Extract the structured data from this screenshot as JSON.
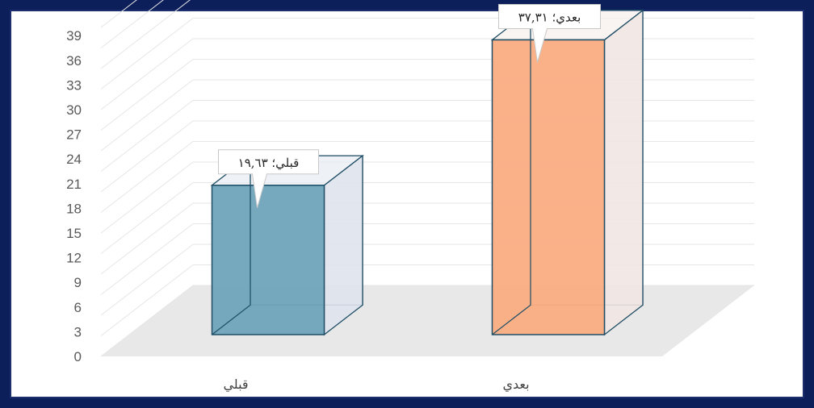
{
  "chart_data": {
    "type": "bar",
    "categories": [
      "قبلي",
      "بعدي"
    ],
    "values": [
      19.63,
      37.31
    ],
    "data_labels": [
      "قبلي؛ ١٩,٦٣",
      "بعدي؛ ٣٧,٣١"
    ],
    "colors": [
      "#6fa3bb",
      "#fbad82"
    ],
    "yticks": [
      "0",
      "3",
      "6",
      "9",
      "12",
      "15",
      "18",
      "21",
      "24",
      "27",
      "30",
      "33",
      "36",
      "39"
    ],
    "ylim": [
      0,
      39
    ],
    "title": "",
    "xlabel": "",
    "ylabel": "",
    "grid": true,
    "style": "3d-column"
  },
  "frame": {
    "border_color": "#0c1f5a"
  }
}
